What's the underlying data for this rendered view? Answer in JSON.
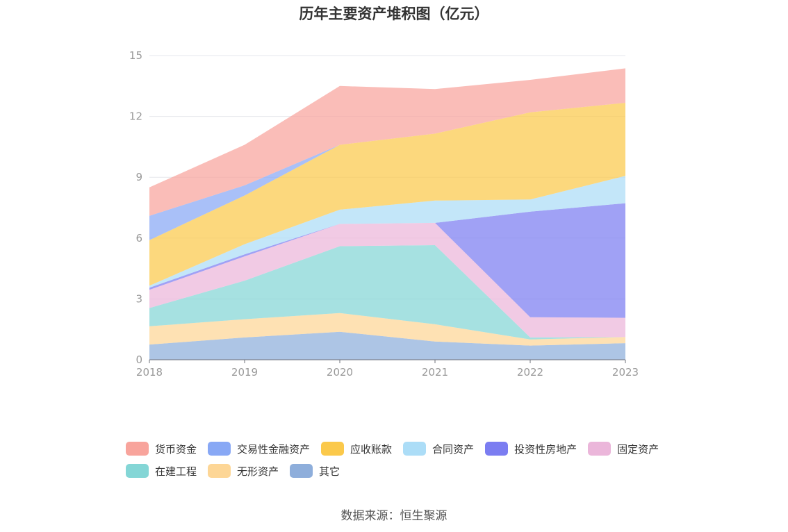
{
  "chart_data": {
    "type": "area",
    "stacked": true,
    "title": "历年主要资产堆积图（亿元）",
    "xlabel": "",
    "ylabel": "",
    "x": [
      "2018",
      "2019",
      "2020",
      "2021",
      "2022",
      "2023"
    ],
    "ylim": [
      0,
      15
    ],
    "yticks": [
      "0",
      "3",
      "6",
      "9",
      "12",
      "15"
    ],
    "grid": true,
    "legend_position": "bottom",
    "series": [
      {
        "name": "其它",
        "color": "#8EAEDB",
        "values": [
          0.75,
          1.1,
          1.38,
          0.9,
          0.7,
          0.82
        ]
      },
      {
        "name": "无形资产",
        "color": "#FDD696",
        "values": [
          0.9,
          0.9,
          0.92,
          0.85,
          0.3,
          0.3
        ]
      },
      {
        "name": "在建工程",
        "color": "#84D6D6",
        "values": [
          0.9,
          1.9,
          3.3,
          3.9,
          0.1,
          0.0
        ]
      },
      {
        "name": "固定资产",
        "color": "#EBB6DA",
        "values": [
          0.9,
          1.2,
          1.1,
          1.1,
          1.0,
          0.95
        ]
      },
      {
        "name": "投资性房地产",
        "color": "#7B7DF1",
        "values": [
          0.1,
          0.1,
          0.0,
          0.0,
          5.2,
          5.65
        ]
      },
      {
        "name": "合同资产",
        "color": "#ACDDF7",
        "values": [
          0.1,
          0.5,
          0.7,
          1.1,
          0.6,
          1.35
        ]
      },
      {
        "name": "应收账款",
        "color": "#FBC94B",
        "values": [
          2.25,
          2.4,
          3.2,
          3.3,
          4.3,
          3.6
        ]
      },
      {
        "name": "交易性金融资产",
        "color": "#88A8F5",
        "values": [
          1.2,
          0.5,
          0.0,
          0.0,
          0.0,
          0.0
        ]
      },
      {
        "name": "货币资金",
        "color": "#F8A49C",
        "values": [
          1.4,
          2.0,
          2.9,
          2.2,
          1.6,
          1.7
        ]
      }
    ],
    "legend_order": [
      "货币资金",
      "交易性金融资产",
      "应收账款",
      "合同资产",
      "投资性房地产",
      "固定资产",
      "在建工程",
      "无形资产",
      "其它"
    ]
  },
  "source_note": "数据来源：恒生聚源"
}
